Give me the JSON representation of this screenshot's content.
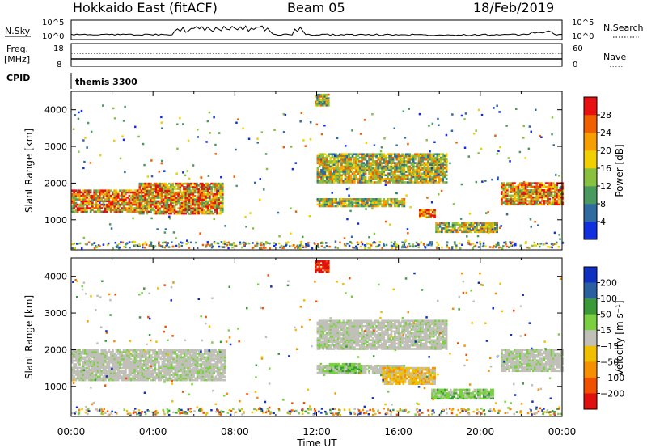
{
  "header": {
    "station": "Hokkaido East (fitACF)",
    "beam": "Beam 05",
    "date": "18/Feb/2019"
  },
  "status_panels": {
    "nsky_label": "N.Sky",
    "nsky_ticks": [
      "10^5",
      "10^0"
    ],
    "nsearch_label": "N.Search",
    "nsearch_ticks": [
      "10^5",
      "10^0"
    ],
    "freq_label": "Freq.",
    "freq_unit": "[MHz]",
    "freq_ticks": [
      "18",
      "8"
    ],
    "nave_label": "Nave",
    "nave_ticks": [
      "60",
      "0"
    ],
    "cpid_label": "CPID",
    "cpid_value": "themis 3300"
  },
  "axes": {
    "xlabel": "Time UT",
    "x_ticks": [
      "00:00",
      "04:00",
      "08:00",
      "12:00",
      "16:00",
      "20:00",
      "00:00"
    ],
    "ylabel": "Slant Range [km]",
    "y_ticks": [
      "1000",
      "2000",
      "3000",
      "4000"
    ],
    "ylim": [
      180,
      4500
    ],
    "xlim_hours": [
      0,
      24
    ]
  },
  "colorbars": {
    "power": {
      "label": "Power [dB]",
      "ticks": [
        "4",
        "8",
        "12",
        "16",
        "20",
        "24",
        "28"
      ],
      "colors": [
        "#1030e0",
        "#2f6aa0",
        "#4a9a60",
        "#8ac040",
        "#f0d000",
        "#f5a000",
        "#f06000",
        "#e81010"
      ]
    },
    "velocity": {
      "label": "Velocity [m s⁻¹]",
      "ticks": [
        "200",
        "100",
        "50",
        "15",
        "−15",
        "−50",
        "−100",
        "−200"
      ],
      "colors": [
        "#1030c0",
        "#2a60a0",
        "#3a9a3a",
        "#7ad040",
        "#c0c0b8",
        "#f0c000",
        "#f59000",
        "#f05000",
        "#e01010"
      ]
    }
  },
  "chart_data": {
    "type": "heatmap",
    "x_unit": "hours UT",
    "y_unit": "km",
    "power_regions": [
      {
        "t": [
          0.0,
          3.3
        ],
        "r": [
          1200,
          1800
        ],
        "level": "high"
      },
      {
        "t": [
          3.3,
          7.4
        ],
        "r": [
          1150,
          2000
        ],
        "level": "high"
      },
      {
        "t": [
          12.0,
          16.3
        ],
        "r": [
          1350,
          1580
        ],
        "level": "mid"
      },
      {
        "t": [
          12.0,
          18.3
        ],
        "r": [
          2000,
          2800
        ],
        "level": "mid"
      },
      {
        "t": [
          17.0,
          17.8
        ],
        "r": [
          1050,
          1250
        ],
        "level": "high"
      },
      {
        "t": [
          17.8,
          20.8
        ],
        "r": [
          650,
          900
        ],
        "level": "mid"
      },
      {
        "t": [
          21.0,
          24.0
        ],
        "r": [
          1400,
          2000
        ],
        "level": "high"
      },
      {
        "t": [
          11.9,
          12.6
        ],
        "r": [
          4100,
          4400
        ],
        "level": "mid"
      }
    ],
    "velocity_regions": [
      {
        "t": [
          0.0,
          7.5
        ],
        "r": [
          1150,
          2000
        ],
        "kind": "slow"
      },
      {
        "t": [
          12.0,
          16.3
        ],
        "r": [
          1350,
          1580
        ],
        "kind": "slow"
      },
      {
        "t": [
          12.0,
          18.3
        ],
        "r": [
          2000,
          2800
        ],
        "kind": "slow"
      },
      {
        "t": [
          21.0,
          24.0
        ],
        "r": [
          1400,
          2000
        ],
        "kind": "slow"
      },
      {
        "t": [
          12.6,
          14.2
        ],
        "r": [
          1350,
          1600
        ],
        "kind": "toward"
      },
      {
        "t": [
          17.6,
          20.6
        ],
        "r": [
          650,
          900
        ],
        "kind": "toward"
      },
      {
        "t": [
          15.2,
          17.8
        ],
        "r": [
          1050,
          1500
        ],
        "kind": "away"
      },
      {
        "t": [
          11.9,
          12.6
        ],
        "r": [
          4100,
          4400
        ],
        "kind": "strong-away"
      }
    ]
  }
}
